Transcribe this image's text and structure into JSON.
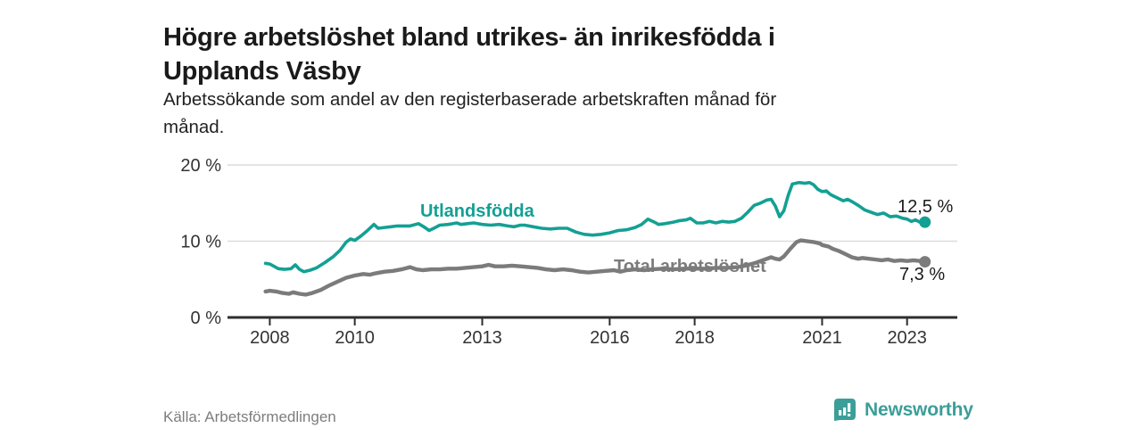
{
  "header": {
    "title_line1": "Högre arbetslöshet bland utrikes- än inrikesfödda i",
    "title_line2": "Upplands Väsby",
    "subtitle_line1": "Arbetssökande som andel av den registerbaserade arbetskraften månad för",
    "subtitle_line2": "månad."
  },
  "footer": {
    "source": "Källa: Arbetsförmedlingen",
    "brand": "Newsworthy"
  },
  "colors": {
    "series1": "#13a094",
    "series2": "#7b7b7b",
    "axis": "#2e2e2e",
    "grid": "#dcdcdc",
    "tick_text": "#333333",
    "brand": "#3b9e98"
  },
  "chart_data": {
    "type": "line",
    "title": "Högre arbetslöshet bland utrikes- än inrikesfödda i Upplands Väsby",
    "subtitle": "Arbetssökande som andel av den registerbaserade arbetskraften månad för månad.",
    "x_unit": "decimal_year",
    "xlim": [
      2007.85,
      2024.2
    ],
    "ylim": [
      0,
      20
    ],
    "grid": "horizontal",
    "legend_position": "inline-labels",
    "yticks": [
      {
        "value": 0,
        "label": "0 %"
      },
      {
        "value": 10,
        "label": "10 %"
      },
      {
        "value": 20,
        "label": "20 %"
      }
    ],
    "xticks": [
      {
        "value": 2008,
        "label": "2008"
      },
      {
        "value": 2010,
        "label": "2010"
      },
      {
        "value": 2013,
        "label": "2013"
      },
      {
        "value": 2016,
        "label": "2016"
      },
      {
        "value": 2018,
        "label": "2018"
      },
      {
        "value": 2021,
        "label": "2021"
      },
      {
        "value": 2023,
        "label": "2023"
      }
    ],
    "series": [
      {
        "name": "Utlandsfödda",
        "label": "Utlandsfödda",
        "color": "#13a094",
        "end_label": "12,5 %",
        "end_value": 12.5,
        "points": [
          [
            2007.9,
            7.1
          ],
          [
            2008.0,
            7.0
          ],
          [
            2008.1,
            6.7
          ],
          [
            2008.2,
            6.4
          ],
          [
            2008.35,
            6.3
          ],
          [
            2008.5,
            6.4
          ],
          [
            2008.6,
            6.9
          ],
          [
            2008.7,
            6.3
          ],
          [
            2008.8,
            6.0
          ],
          [
            2008.95,
            6.2
          ],
          [
            2009.1,
            6.5
          ],
          [
            2009.3,
            7.2
          ],
          [
            2009.5,
            8.0
          ],
          [
            2009.65,
            8.8
          ],
          [
            2009.8,
            9.9
          ],
          [
            2009.9,
            10.3
          ],
          [
            2010.0,
            10.1
          ],
          [
            2010.15,
            10.7
          ],
          [
            2010.3,
            11.4
          ],
          [
            2010.45,
            12.2
          ],
          [
            2010.55,
            11.7
          ],
          [
            2010.7,
            11.8
          ],
          [
            2010.85,
            11.9
          ],
          [
            2011.0,
            12.0
          ],
          [
            2011.15,
            12.0
          ],
          [
            2011.3,
            12.0
          ],
          [
            2011.5,
            12.3
          ],
          [
            2011.65,
            11.8
          ],
          [
            2011.75,
            11.4
          ],
          [
            2011.9,
            11.8
          ],
          [
            2012.0,
            12.1
          ],
          [
            2012.2,
            12.2
          ],
          [
            2012.4,
            12.4
          ],
          [
            2012.5,
            12.2
          ],
          [
            2012.65,
            12.3
          ],
          [
            2012.8,
            12.4
          ],
          [
            2013.0,
            12.2
          ],
          [
            2013.2,
            12.1
          ],
          [
            2013.4,
            12.2
          ],
          [
            2013.6,
            12.0
          ],
          [
            2013.75,
            11.9
          ],
          [
            2013.9,
            12.1
          ],
          [
            2014.0,
            12.1
          ],
          [
            2014.2,
            11.9
          ],
          [
            2014.4,
            11.7
          ],
          [
            2014.6,
            11.6
          ],
          [
            2014.8,
            11.7
          ],
          [
            2015.0,
            11.7
          ],
          [
            2015.2,
            11.2
          ],
          [
            2015.4,
            10.9
          ],
          [
            2015.6,
            10.8
          ],
          [
            2015.8,
            10.9
          ],
          [
            2016.0,
            11.1
          ],
          [
            2016.2,
            11.4
          ],
          [
            2016.4,
            11.5
          ],
          [
            2016.6,
            11.8
          ],
          [
            2016.75,
            12.2
          ],
          [
            2016.9,
            12.9
          ],
          [
            2017.05,
            12.5
          ],
          [
            2017.15,
            12.2
          ],
          [
            2017.3,
            12.3
          ],
          [
            2017.5,
            12.5
          ],
          [
            2017.65,
            12.7
          ],
          [
            2017.8,
            12.8
          ],
          [
            2017.9,
            13.0
          ],
          [
            2018.05,
            12.4
          ],
          [
            2018.2,
            12.4
          ],
          [
            2018.35,
            12.6
          ],
          [
            2018.5,
            12.4
          ],
          [
            2018.65,
            12.6
          ],
          [
            2018.8,
            12.5
          ],
          [
            2018.95,
            12.6
          ],
          [
            2019.1,
            13.0
          ],
          [
            2019.25,
            13.8
          ],
          [
            2019.4,
            14.7
          ],
          [
            2019.55,
            15.0
          ],
          [
            2019.7,
            15.4
          ],
          [
            2019.8,
            15.5
          ],
          [
            2019.9,
            14.6
          ],
          [
            2020.0,
            13.2
          ],
          [
            2020.1,
            14.0
          ],
          [
            2020.2,
            16.0
          ],
          [
            2020.3,
            17.5
          ],
          [
            2020.45,
            17.7
          ],
          [
            2020.6,
            17.6
          ],
          [
            2020.7,
            17.7
          ],
          [
            2020.8,
            17.4
          ],
          [
            2020.9,
            16.8
          ],
          [
            2021.0,
            16.5
          ],
          [
            2021.1,
            16.6
          ],
          [
            2021.2,
            16.1
          ],
          [
            2021.35,
            15.7
          ],
          [
            2021.5,
            15.3
          ],
          [
            2021.6,
            15.5
          ],
          [
            2021.7,
            15.2
          ],
          [
            2021.85,
            14.7
          ],
          [
            2022.0,
            14.1
          ],
          [
            2022.15,
            13.8
          ],
          [
            2022.3,
            13.5
          ],
          [
            2022.45,
            13.7
          ],
          [
            2022.6,
            13.2
          ],
          [
            2022.75,
            13.3
          ],
          [
            2022.9,
            13.0
          ],
          [
            2023.0,
            12.9
          ],
          [
            2023.1,
            12.6
          ],
          [
            2023.2,
            12.8
          ],
          [
            2023.3,
            12.5
          ],
          [
            2023.42,
            12.5
          ]
        ]
      },
      {
        "name": "Total arbetslöshet",
        "label": "Total arbetslöshet",
        "color": "#7b7b7b",
        "end_label": "7,3 %",
        "end_value": 7.3,
        "points": [
          [
            2007.9,
            3.4
          ],
          [
            2008.0,
            3.5
          ],
          [
            2008.15,
            3.4
          ],
          [
            2008.3,
            3.2
          ],
          [
            2008.45,
            3.1
          ],
          [
            2008.55,
            3.3
          ],
          [
            2008.7,
            3.1
          ],
          [
            2008.85,
            3.0
          ],
          [
            2009.0,
            3.2
          ],
          [
            2009.2,
            3.6
          ],
          [
            2009.4,
            4.2
          ],
          [
            2009.6,
            4.7
          ],
          [
            2009.8,
            5.2
          ],
          [
            2010.0,
            5.5
          ],
          [
            2010.2,
            5.7
          ],
          [
            2010.35,
            5.6
          ],
          [
            2010.5,
            5.8
          ],
          [
            2010.7,
            6.0
          ],
          [
            2010.9,
            6.1
          ],
          [
            2011.1,
            6.3
          ],
          [
            2011.3,
            6.6
          ],
          [
            2011.45,
            6.3
          ],
          [
            2011.6,
            6.2
          ],
          [
            2011.8,
            6.3
          ],
          [
            2012.0,
            6.3
          ],
          [
            2012.2,
            6.4
          ],
          [
            2012.4,
            6.4
          ],
          [
            2012.6,
            6.5
          ],
          [
            2012.8,
            6.6
          ],
          [
            2013.0,
            6.7
          ],
          [
            2013.15,
            6.9
          ],
          [
            2013.3,
            6.7
          ],
          [
            2013.5,
            6.7
          ],
          [
            2013.7,
            6.8
          ],
          [
            2013.9,
            6.7
          ],
          [
            2014.1,
            6.6
          ],
          [
            2014.3,
            6.5
          ],
          [
            2014.5,
            6.3
          ],
          [
            2014.7,
            6.2
          ],
          [
            2014.9,
            6.3
          ],
          [
            2015.1,
            6.2
          ],
          [
            2015.3,
            6.0
          ],
          [
            2015.5,
            5.9
          ],
          [
            2015.7,
            6.0
          ],
          [
            2015.9,
            6.1
          ],
          [
            2016.1,
            6.2
          ],
          [
            2016.25,
            6.0
          ],
          [
            2016.4,
            6.2
          ],
          [
            2016.6,
            6.3
          ],
          [
            2016.8,
            6.2
          ],
          [
            2017.0,
            6.3
          ],
          [
            2017.25,
            6.4
          ],
          [
            2017.5,
            6.3
          ],
          [
            2017.75,
            6.4
          ],
          [
            2018.0,
            6.4
          ],
          [
            2018.25,
            6.4
          ],
          [
            2018.5,
            6.5
          ],
          [
            2018.75,
            6.5
          ],
          [
            2019.0,
            6.6
          ],
          [
            2019.2,
            6.8
          ],
          [
            2019.4,
            7.1
          ],
          [
            2019.6,
            7.5
          ],
          [
            2019.8,
            7.9
          ],
          [
            2019.9,
            7.7
          ],
          [
            2020.0,
            7.6
          ],
          [
            2020.1,
            8.0
          ],
          [
            2020.25,
            9.0
          ],
          [
            2020.4,
            9.9
          ],
          [
            2020.5,
            10.1
          ],
          [
            2020.65,
            10.0
          ],
          [
            2020.8,
            9.9
          ],
          [
            2020.95,
            9.7
          ],
          [
            2021.0,
            9.5
          ],
          [
            2021.15,
            9.3
          ],
          [
            2021.25,
            9.0
          ],
          [
            2021.4,
            8.7
          ],
          [
            2021.55,
            8.3
          ],
          [
            2021.7,
            7.9
          ],
          [
            2021.85,
            7.7
          ],
          [
            2021.95,
            7.8
          ],
          [
            2022.1,
            7.7
          ],
          [
            2022.25,
            7.6
          ],
          [
            2022.4,
            7.5
          ],
          [
            2022.55,
            7.6
          ],
          [
            2022.7,
            7.4
          ],
          [
            2022.85,
            7.5
          ],
          [
            2023.0,
            7.4
          ],
          [
            2023.15,
            7.5
          ],
          [
            2023.3,
            7.4
          ],
          [
            2023.42,
            7.3
          ]
        ]
      }
    ]
  }
}
